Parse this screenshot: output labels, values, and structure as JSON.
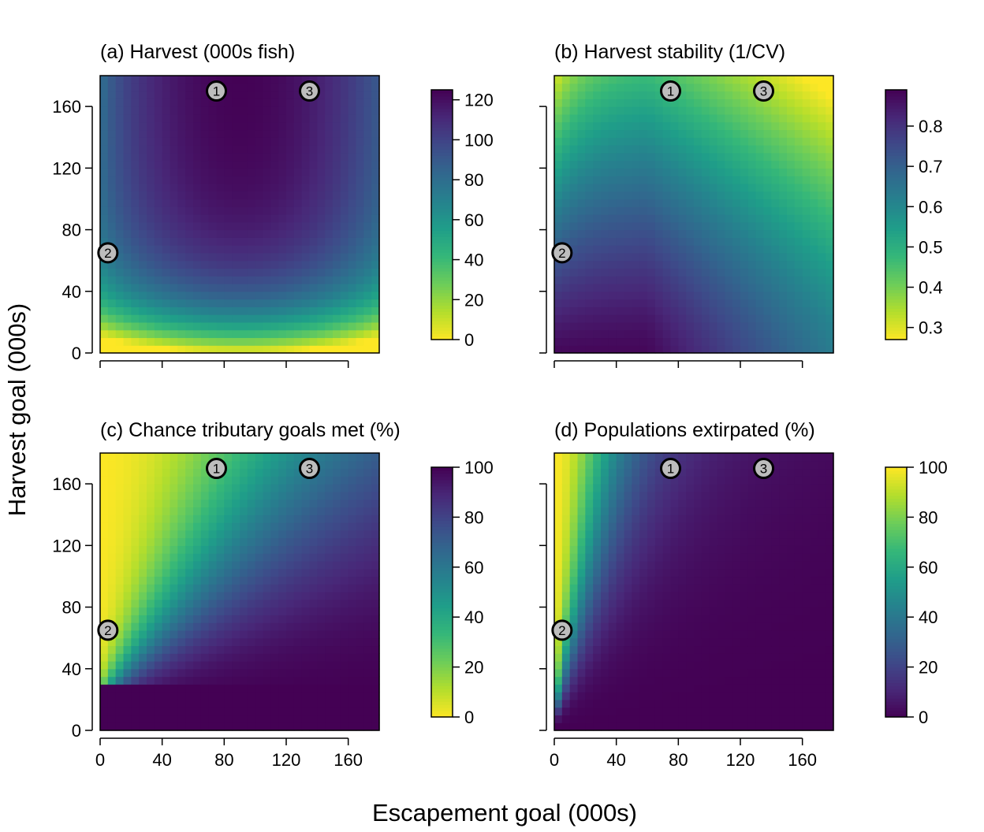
{
  "figure": {
    "xlabel": "Escapement goal (000s)",
    "ylabel": "Harvest goal (000s)",
    "x_ticks": [
      0,
      40,
      80,
      120,
      160
    ],
    "y_ticks": [
      0,
      40,
      80,
      120,
      160
    ],
    "xlim": [
      0,
      180
    ],
    "ylim": [
      0,
      180
    ],
    "grid": false
  },
  "chart_data": [
    {
      "type": "heatmap",
      "title": "(a) Harvest (000s fish)",
      "colormap": "viridis",
      "colormap_reversed": true,
      "colorbar": {
        "min": 0,
        "max": 125,
        "ticks": [
          0,
          20,
          40,
          60,
          80,
          100,
          120
        ]
      },
      "show_x_tick_labels": false,
      "show_y_tick_labels": true,
      "markers": [
        {
          "label": "1",
          "x": 75,
          "y": 170
        },
        {
          "label": "2",
          "x": 5,
          "y": 65
        },
        {
          "label": "3",
          "x": 135,
          "y": 170
        }
      ]
    },
    {
      "type": "heatmap",
      "title": "(b) Harvest stability (1/CV)",
      "colormap": "viridis",
      "colormap_reversed": true,
      "colorbar": {
        "min": 0.27,
        "max": 0.89,
        "ticks": [
          0.3,
          0.4,
          0.5,
          0.6,
          0.7,
          0.8
        ]
      },
      "show_x_tick_labels": false,
      "show_y_tick_labels": false,
      "markers": [
        {
          "label": "1",
          "x": 75,
          "y": 170
        },
        {
          "label": "2",
          "x": 5,
          "y": 65
        },
        {
          "label": "3",
          "x": 135,
          "y": 170
        }
      ]
    },
    {
      "type": "heatmap",
      "title": "(c) Chance tributary goals met (%)",
      "colormap": "viridis",
      "colormap_reversed": true,
      "colorbar": {
        "min": 0,
        "max": 100,
        "ticks": [
          0,
          20,
          40,
          60,
          80,
          100
        ]
      },
      "show_x_tick_labels": true,
      "show_y_tick_labels": true,
      "markers": [
        {
          "label": "1",
          "x": 75,
          "y": 170
        },
        {
          "label": "2",
          "x": 5,
          "y": 65
        },
        {
          "label": "3",
          "x": 135,
          "y": 170
        }
      ]
    },
    {
      "type": "heatmap",
      "title": "(d) Populations extirpated (%)",
      "colormap": "viridis",
      "colormap_reversed": false,
      "colorbar": {
        "min": 0,
        "max": 100,
        "ticks": [
          0,
          20,
          40,
          60,
          80,
          100
        ]
      },
      "show_x_tick_labels": true,
      "show_y_tick_labels": false,
      "markers": [
        {
          "label": "1",
          "x": 75,
          "y": 170
        },
        {
          "label": "2",
          "x": 5,
          "y": 65
        },
        {
          "label": "3",
          "x": 135,
          "y": 170
        }
      ]
    }
  ]
}
